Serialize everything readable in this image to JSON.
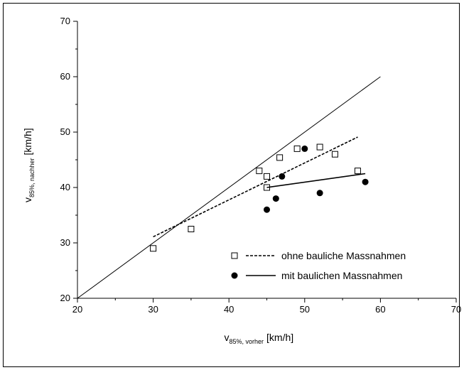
{
  "chart_data": {
    "type": "scatter",
    "xlabel": {
      "main": "v",
      "sub": "85%, vorher",
      "unit": "[km/h]"
    },
    "ylabel": {
      "main": "v",
      "sub": "85%, nachher",
      "unit": "[km/h]"
    },
    "xlim": [
      20,
      70
    ],
    "ylim": [
      20,
      70
    ],
    "xticks": [
      20,
      30,
      40,
      50,
      60,
      70
    ],
    "yticks": [
      20,
      30,
      40,
      50,
      60,
      70
    ],
    "grid": false,
    "legend_position": "bottom-right",
    "reference_line": {
      "x": [
        20,
        60
      ],
      "y": [
        20,
        60
      ]
    },
    "series": [
      {
        "name": "ohne bauliche Massnahmen",
        "marker": "open-square",
        "points": [
          {
            "x": 30,
            "y": 29
          },
          {
            "x": 35,
            "y": 32.5
          },
          {
            "x": 44,
            "y": 43
          },
          {
            "x": 45,
            "y": 42
          },
          {
            "x": 45,
            "y": 40
          },
          {
            "x": 46.7,
            "y": 45.4
          },
          {
            "x": 49,
            "y": 47
          },
          {
            "x": 52,
            "y": 47.3
          },
          {
            "x": 54,
            "y": 46
          },
          {
            "x": 57,
            "y": 43
          }
        ],
        "trend": {
          "style": "dashed",
          "x": [
            30,
            57
          ],
          "y": [
            31.1,
            49.1
          ]
        }
      },
      {
        "name": "mit baulichen Massnahmen",
        "marker": "filled-circle",
        "points": [
          {
            "x": 45,
            "y": 36
          },
          {
            "x": 46.2,
            "y": 38
          },
          {
            "x": 47,
            "y": 42
          },
          {
            "x": 50,
            "y": 47
          },
          {
            "x": 52,
            "y": 39
          },
          {
            "x": 58,
            "y": 41
          }
        ],
        "trend": {
          "style": "solid",
          "x": [
            45,
            58
          ],
          "y": [
            40,
            42.5
          ]
        }
      }
    ]
  }
}
